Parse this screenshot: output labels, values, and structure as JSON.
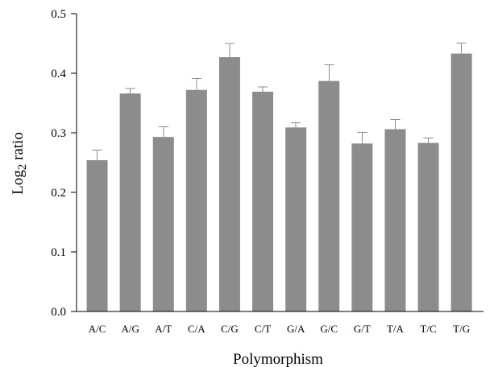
{
  "chart_data": {
    "type": "bar",
    "categories": [
      "A/C",
      "A/G",
      "A/T",
      "C/A",
      "C/G",
      "C/T",
      "G/A",
      "G/C",
      "G/T",
      "T/A",
      "T/C",
      "T/G"
    ],
    "values": [
      0.254,
      0.366,
      0.293,
      0.372,
      0.427,
      0.369,
      0.309,
      0.387,
      0.282,
      0.306,
      0.283,
      0.433
    ],
    "errors": [
      0.017,
      0.008,
      0.017,
      0.019,
      0.023,
      0.008,
      0.008,
      0.027,
      0.019,
      0.016,
      0.008,
      0.018
    ],
    "xlabel": "Polymorphism",
    "ylabel": "Log",
    "ylabel_subscript": "2",
    "ylabel_suffix": " ratio",
    "ylim": [
      0.0,
      0.5
    ],
    "yticks": [
      "0.0",
      "0.1",
      "0.2",
      "0.3",
      "0.4",
      "0.5"
    ],
    "grid": false,
    "bar_color": "#8c8c8c",
    "error_color": "#8c8c8c"
  }
}
